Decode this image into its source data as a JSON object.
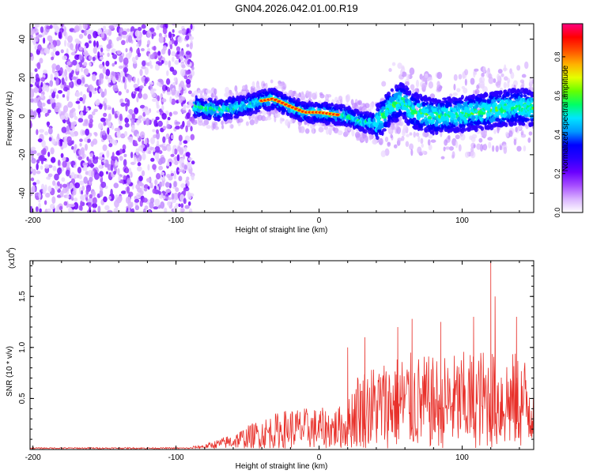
{
  "title": "GN04.2026.042.01.00.R19",
  "chart_data": [
    {
      "type": "heatmap",
      "xlabel": "Height of straight line (km)",
      "ylabel": "Frequency (Hz)",
      "xlim": [
        -202,
        150
      ],
      "ylim": [
        -50,
        48
      ],
      "xticks": [
        -200,
        -100,
        0,
        100
      ],
      "yticks": [
        -40,
        -20,
        0,
        20,
        40
      ],
      "colorbar": {
        "label": "Normalized spectral amplitude",
        "range": [
          0,
          0.97
        ],
        "ticks": [
          "0.0",
          "0.2",
          "0.4",
          "0.6",
          "0.8"
        ],
        "tick_values": [
          0,
          0.2,
          0.4,
          0.6,
          0.8
        ],
        "colors": [
          "#ffffff",
          "#d9b3ff",
          "#a64dff",
          "#6a00ff",
          "#2a00ff",
          "#0000ff",
          "#0099ff",
          "#00e5ff",
          "#00ff66",
          "#66ff00",
          "#e5ff00",
          "#ffb000",
          "#ff5000",
          "#ff0000",
          "#ff007f"
        ]
      },
      "noise_region_km": [
        -202,
        -88
      ],
      "signal_start_km": -87,
      "ridge": {
        "x": [
          -87,
          -70,
          -55,
          -40,
          -32,
          -20,
          -10,
          0,
          10,
          20,
          30,
          40,
          50,
          58,
          65,
          80,
          100,
          120,
          140,
          150
        ],
        "y": [
          5,
          3,
          5,
          8,
          9,
          5,
          2,
          2,
          1,
          0,
          -3,
          -4,
          5,
          8,
          3,
          0,
          1,
          3,
          5,
          4
        ]
      }
    },
    {
      "type": "line",
      "xlabel": "Height of straight line (km)",
      "ylabel": "SNR (10 * v/v)",
      "yscale_label": "(x10",
      "yscale_exp": "4",
      "yscale_close": ")",
      "xlim": [
        -202,
        150
      ],
      "ylim": [
        0,
        1.85
      ],
      "xticks": [
        -200,
        -100,
        0,
        100
      ],
      "yticks": [
        "0.5",
        "1.0",
        "1.5"
      ],
      "ytick_values": [
        0.5,
        1.0,
        1.5
      ],
      "color": "#e8302a",
      "envelope": {
        "x": [
          -202,
          -90,
          -80,
          -60,
          -40,
          -20,
          0,
          10,
          20,
          25,
          40,
          60,
          80,
          100,
          120,
          150
        ],
        "y": [
          0.02,
          0.02,
          0.04,
          0.15,
          0.3,
          0.4,
          0.4,
          0.4,
          0.45,
          0.75,
          0.85,
          0.95,
          0.9,
          0.95,
          1.0,
          0.9
        ]
      },
      "peaks": [
        {
          "x": 20,
          "y": 1.0
        },
        {
          "x": 32,
          "y": 1.1
        },
        {
          "x": 55,
          "y": 1.2
        },
        {
          "x": 65,
          "y": 1.28
        },
        {
          "x": 85,
          "y": 1.25
        },
        {
          "x": 108,
          "y": 1.3
        },
        {
          "x": 120,
          "y": 1.85
        },
        {
          "x": 123,
          "y": 1.5
        },
        {
          "x": 138,
          "y": 1.3
        }
      ]
    }
  ]
}
